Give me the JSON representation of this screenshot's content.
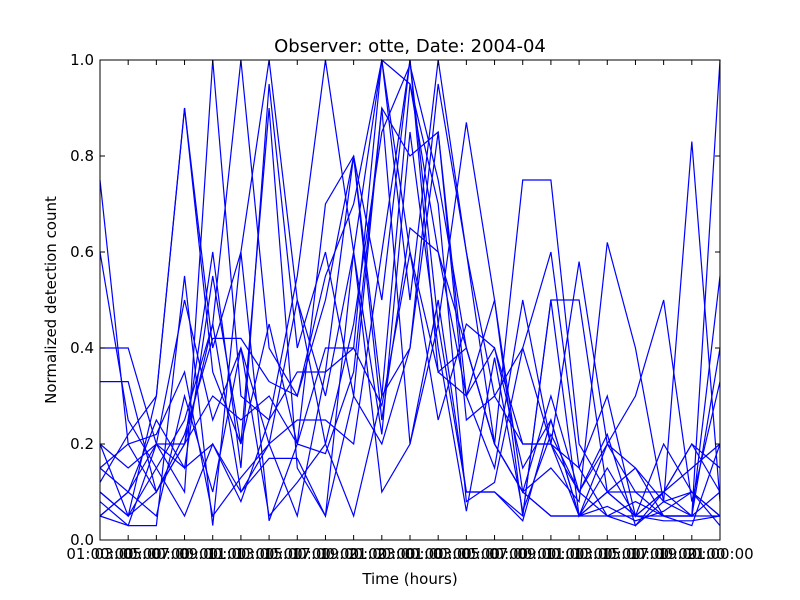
{
  "chart_data": {
    "type": "line",
    "title": "Observer: otte, Date: 2004-04",
    "xlabel": "Time (hours)",
    "ylabel": "Normalized detection count",
    "xlim": [
      0,
      22
    ],
    "ylim": [
      0,
      1
    ],
    "x_ticks": [
      {
        "value": 0,
        "label": "01:00:00"
      },
      {
        "value": 1,
        "label": "03:00:00"
      },
      {
        "value": 2,
        "label": "05:00:00"
      },
      {
        "value": 3,
        "label": "07:00:00"
      },
      {
        "value": 4,
        "label": "09:00:00"
      },
      {
        "value": 5,
        "label": "11:00:00"
      },
      {
        "value": 6,
        "label": "13:00:00"
      },
      {
        "value": 7,
        "label": "15:00:00"
      },
      {
        "value": 8,
        "label": "17:00:00"
      },
      {
        "value": 9,
        "label": "19:00:00"
      },
      {
        "value": 10,
        "label": "21:00:00"
      },
      {
        "value": 11,
        "label": "23:00:00"
      },
      {
        "value": 12,
        "label": "01:00:00"
      },
      {
        "value": 13,
        "label": "03:00:00"
      },
      {
        "value": 14,
        "label": "05:00:00"
      },
      {
        "value": 15,
        "label": "07:00:00"
      },
      {
        "value": 16,
        "label": "09:00:00"
      },
      {
        "value": 17,
        "label": "11:00:00"
      },
      {
        "value": 18,
        "label": "13:00:00"
      },
      {
        "value": 19,
        "label": "15:00:00"
      },
      {
        "value": 20,
        "label": "17:00:00"
      },
      {
        "value": 21,
        "label": "19:00:00"
      },
      {
        "value": 22,
        "label": "21:00:00"
      }
    ],
    "y_ticks": [
      {
        "value": 0.0,
        "label": "0.0"
      },
      {
        "value": 0.2,
        "label": "0.2"
      },
      {
        "value": 0.4,
        "label": "0.4"
      },
      {
        "value": 0.6,
        "label": "0.6"
      },
      {
        "value": 0.8,
        "label": "0.8"
      },
      {
        "value": 1.0,
        "label": "1.0"
      }
    ],
    "line_color": "#0000ff",
    "grid": false,
    "x_hours": [
      0,
      1,
      2,
      3,
      4,
      5,
      6,
      7,
      8,
      9,
      10,
      11,
      12,
      13,
      14,
      15,
      16,
      17,
      18,
      19,
      20,
      21,
      22
    ],
    "series": [
      {
        "values": [
          0.75,
          0.2,
          0.1,
          0.2,
          0.45,
          1.0,
          0.4,
          0.3,
          0.55,
          0.7,
          1.0,
          0.95,
          0.6,
          0.4,
          0.2,
          0.1,
          0.05,
          0.05,
          0.2,
          0.15,
          0.05,
          0.05,
          0.1
        ]
      },
      {
        "values": [
          0.1,
          0.05,
          0.3,
          0.9,
          0.4,
          0.6,
          1.0,
          0.5,
          0.2,
          0.45,
          0.85,
          0.99,
          0.75,
          0.4,
          0.2,
          0.1,
          0.3,
          0.1,
          0.05,
          0.05,
          0.1,
          0.2,
          0.15
        ]
      },
      {
        "values": [
          0.4,
          0.4,
          0.2,
          0.1,
          1.0,
          0.3,
          0.25,
          0.55,
          1.0,
          0.6,
          1.0,
          0.6,
          0.35,
          0.3,
          0.4,
          0.2,
          0.2,
          0.15,
          0.3,
          0.05,
          0.2,
          0.1,
          0.05
        ]
      },
      {
        "values": [
          0.05,
          0.1,
          0.25,
          0.15,
          0.55,
          0.2,
          0.45,
          0.2,
          0.7,
          0.8,
          0.5,
          1.0,
          0.35,
          0.4,
          0.2,
          0.75,
          0.75,
          0.2,
          0.1,
          0.05,
          0.1,
          0.05,
          0.4
        ]
      },
      {
        "values": [
          0.2,
          0.15,
          0.2,
          0.2,
          0.6,
          0.15,
          0.95,
          0.4,
          0.6,
          0.3,
          0.9,
          0.8,
          0.85,
          0.3,
          0.15,
          0.5,
          0.2,
          0.05,
          0.1,
          0.05,
          0.05,
          0.03,
          0.2
        ]
      },
      {
        "values": [
          0.1,
          0.05,
          0.1,
          0.2,
          0.3,
          0.25,
          0.3,
          0.2,
          0.4,
          0.4,
          1.0,
          0.5,
          1.0,
          0.6,
          0.2,
          0.1,
          0.05,
          0.05,
          0.05,
          0.08,
          0.05,
          0.05,
          1.0
        ]
      },
      {
        "values": [
          0.05,
          0.03,
          0.2,
          0.5,
          0.25,
          0.4,
          0.2,
          0.25,
          0.25,
          0.2,
          0.6,
          1.0,
          0.45,
          0.1,
          0.1,
          0.05,
          0.5,
          0.5,
          0.1,
          0.1,
          0.05,
          0.05,
          0.05
        ]
      },
      {
        "values": [
          0.12,
          0.22,
          0.3,
          0.9,
          0.35,
          0.2,
          0.9,
          0.15,
          0.05,
          0.3,
          0.2,
          0.4,
          0.95,
          0.6,
          0.3,
          0.4,
          0.2,
          0.1,
          0.2,
          0.1,
          0.1,
          0.15,
          0.2
        ]
      },
      {
        "values": [
          0.6,
          0.25,
          0.15,
          0.05,
          0.2,
          0.1,
          0.2,
          0.5,
          0.3,
          0.6,
          0.1,
          0.2,
          0.45,
          0.87,
          0.5,
          0.1,
          0.15,
          0.08,
          0.62,
          0.4,
          0.08,
          0.1,
          0.05
        ]
      },
      {
        "values": [
          0.33,
          0.33,
          0.1,
          0.22,
          0.42,
          0.42,
          0.33,
          0.3,
          0.5,
          0.8,
          0.3,
          0.4,
          0.85,
          0.25,
          0.3,
          0.2,
          0.2,
          0.58,
          0.2,
          0.3,
          0.5,
          0.08,
          0.33
        ]
      },
      {
        "values": [
          0.15,
          0.1,
          0.2,
          0.15,
          0.2,
          0.08,
          0.25,
          0.35,
          0.35,
          0.4,
          0.28,
          0.6,
          0.25,
          0.45,
          0.4,
          0.15,
          0.25,
          0.05,
          0.1,
          0.15,
          0.08,
          0.83,
          0.08
        ]
      },
      {
        "values": [
          0.05,
          0.1,
          0.05,
          0.3,
          0.1,
          0.4,
          0.05,
          0.12,
          0.2,
          0.05,
          0.3,
          0.95,
          0.7,
          0.08,
          0.12,
          0.4,
          0.6,
          0.15,
          0.05,
          0.03,
          0.08,
          0.05,
          0.55
        ]
      },
      {
        "values": [
          0.2,
          0.05,
          0.15,
          0.25,
          0.45,
          0.1,
          0.17,
          0.17,
          0.05,
          0.6,
          0.22,
          0.85,
          0.4,
          0.06,
          0.38,
          0.06,
          0.22,
          0.1,
          0.22,
          0.03,
          0.1,
          0.2,
          0.1
        ]
      },
      {
        "values": [
          0.08,
          0.03,
          0.03,
          0.55,
          0.03,
          0.6,
          0.04,
          0.2,
          0.18,
          0.35,
          0.9,
          0.2,
          0.5,
          0.1,
          0.1,
          0.04,
          0.25,
          0.05,
          0.07,
          0.04,
          0.06,
          0.1,
          0.03
        ]
      },
      {
        "values": [
          0.15,
          0.2,
          0.22,
          0.35,
          0.05,
          0.13,
          0.2,
          0.05,
          0.35,
          0.8,
          0.25,
          0.65,
          0.6,
          0.3,
          0.5,
          0.05,
          0.5,
          0.05,
          0.15,
          0.05,
          0.04,
          0.04,
          0.05
        ]
      }
    ]
  }
}
